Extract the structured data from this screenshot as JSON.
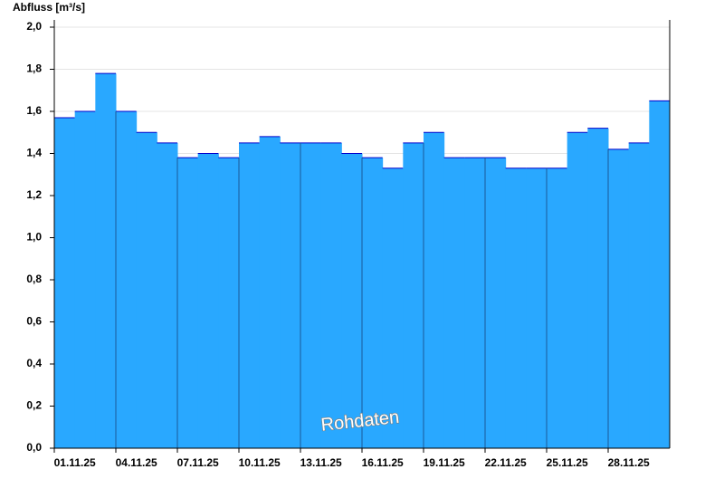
{
  "chart_data": {
    "type": "area",
    "y_label": "Abfluss [m³/s]",
    "annotation": "Rohdaten",
    "x": [
      "01.11.25",
      "02.11.25",
      "03.11.25",
      "04.11.25",
      "05.11.25",
      "06.11.25",
      "07.11.25",
      "08.11.25",
      "09.11.25",
      "10.11.25",
      "11.11.25",
      "12.11.25",
      "13.11.25",
      "14.11.25",
      "15.11.25",
      "16.11.25",
      "17.11.25",
      "18.11.25",
      "19.11.25",
      "20.11.25",
      "21.11.25",
      "22.11.25",
      "23.11.25",
      "24.11.25",
      "25.11.25",
      "26.11.25",
      "27.11.25",
      "28.11.25",
      "29.11.25",
      "30.11.25"
    ],
    "values": [
      1.57,
      1.6,
      1.78,
      1.6,
      1.5,
      1.45,
      1.38,
      1.4,
      1.38,
      1.45,
      1.48,
      1.45,
      1.45,
      1.45,
      1.4,
      1.38,
      1.33,
      1.45,
      1.5,
      1.38,
      1.38,
      1.38,
      1.33,
      1.33,
      1.33,
      1.5,
      1.52,
      1.42,
      1.45,
      1.65
    ],
    "xticks": [
      "01.11.25",
      "04.11.25",
      "07.11.25",
      "10.11.25",
      "13.11.25",
      "16.11.25",
      "19.11.25",
      "22.11.25",
      "25.11.25",
      "28.11.25"
    ],
    "ylim": [
      0,
      2
    ],
    "yticks": [
      {
        "value": 0,
        "label": "0,0"
      },
      {
        "value": 0.2,
        "label": "0,2"
      },
      {
        "value": 0.4,
        "label": "0,4"
      },
      {
        "value": 0.6,
        "label": "0,6"
      },
      {
        "value": 0.8,
        "label": "0,8"
      },
      {
        "value": 1,
        "label": "1,0"
      },
      {
        "value": 1.2,
        "label": "1,2"
      },
      {
        "value": 1.4,
        "label": "1,4"
      },
      {
        "value": 1.6,
        "label": "1,6"
      },
      {
        "value": 1.8,
        "label": "1,8"
      },
      {
        "value": 2,
        "label": "2,0"
      }
    ],
    "fill_color": "#29a8ff",
    "line_color": "#0000cc",
    "grid": true
  }
}
